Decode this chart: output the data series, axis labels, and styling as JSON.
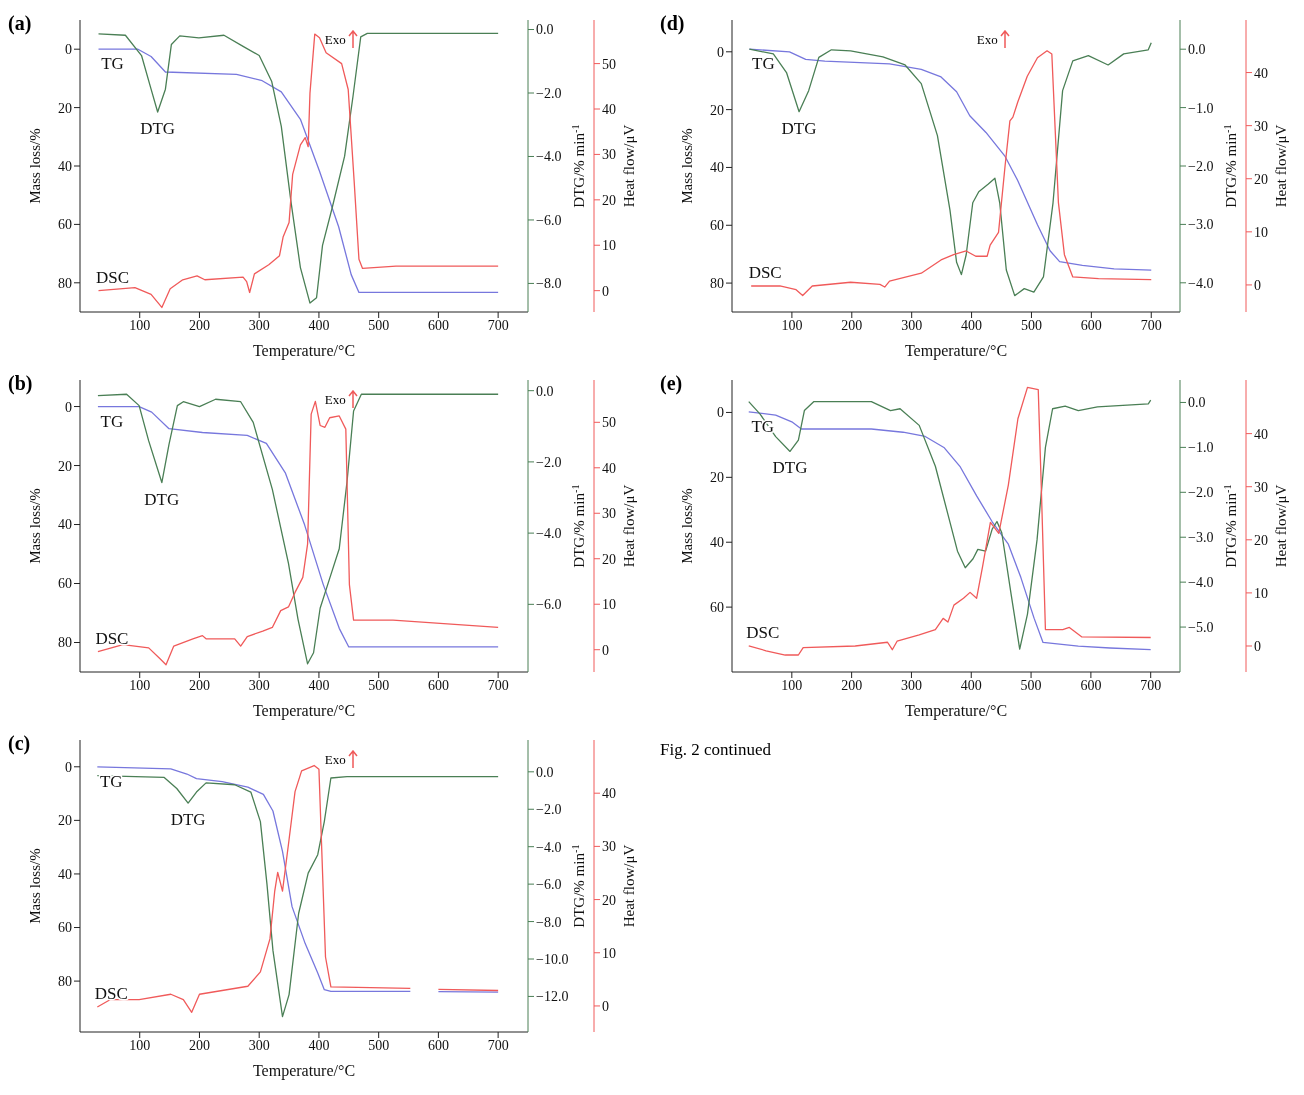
{
  "chart_data": [
    {
      "type": "line",
      "title": "(a)",
      "xlabel": "Temperature/°C",
      "ylabel": "Mass loss/%",
      "y2label": "DTG/% min$^{-1}$",
      "y3label": "Heat flow/μV",
      "xlim": [
        0,
        750
      ],
      "xticks": [
        100,
        200,
        300,
        400,
        500,
        600,
        700
      ],
      "ylim": [
        90,
        -10
      ],
      "yticks": [
        0,
        20,
        40,
        60,
        80
      ],
      "y2lim": [
        -8.9,
        0.3
      ],
      "y2ticks": [
        {
          "value": 0,
          "label": "0.0"
        },
        {
          "value": -2,
          "label": "−2.0"
        },
        {
          "value": -4,
          "label": "−4.0"
        },
        {
          "value": -6,
          "label": "−6.0"
        },
        {
          "value": -8,
          "label": "−8.0"
        }
      ],
      "y3lim": [
        -4.7,
        59.6
      ],
      "y3ticks": [
        0,
        10,
        20,
        30,
        40,
        50
      ],
      "annotations": [
        "Exo"
      ],
      "series": [
        {
          "name": "TG",
          "color": "#7777dd",
          "axis": "y",
          "x": [
            31,
            97,
            119,
            143,
            262,
            305,
            337,
            369,
            401,
            433,
            454,
            467,
            700
          ],
          "values": [
            0,
            0,
            2.5,
            7.8,
            8.6,
            10.8,
            14.6,
            24,
            41.8,
            60.8,
            77.2,
            83.3,
            83.3
          ]
        },
        {
          "name": "DTG",
          "color": "#4a7f55",
          "axis": "y2",
          "x": [
            31,
            76,
            103,
            119,
            130,
            143,
            153,
            167,
            199,
            241,
            273,
            300,
            321,
            337,
            353,
            369,
            385,
            396,
            406,
            422,
            443,
            457,
            470,
            481,
            700
          ],
          "values": [
            -0.14,
            -0.18,
            -0.82,
            -1.88,
            -2.6,
            -1.88,
            -0.47,
            -0.2,
            -0.26,
            -0.18,
            -0.53,
            -0.82,
            -1.64,
            -3.05,
            -5.4,
            -7.5,
            -8.62,
            -8.45,
            -6.8,
            -5.63,
            -3.99,
            -2.11,
            -0.23,
            -0.12,
            -0.12
          ]
        },
        {
          "name": "DSC",
          "color": "#f05a5a",
          "axis": "y3",
          "x": [
            31,
            92,
            119,
            137,
            151,
            172,
            196,
            209,
            273,
            279,
            284,
            292,
            316,
            334,
            340,
            350,
            356,
            369,
            377,
            382,
            385,
            393,
            401,
            412,
            438,
            449,
            459,
            467,
            473,
            529,
            700
          ],
          "values": [
            0,
            0.65,
            -0.8,
            -3.7,
            0.4,
            2.4,
            3.25,
            2.4,
            3,
            2,
            -0.4,
            3.7,
            5.7,
            7.7,
            11.8,
            15,
            25.6,
            32.1,
            33.7,
            31.7,
            43.5,
            56.5,
            55.7,
            52.4,
            50,
            44.3,
            24,
            6.9,
            4.9,
            5.4,
            5.4
          ]
        }
      ]
    },
    {
      "type": "line",
      "title": "(b)",
      "xlabel": "Temperature/°C",
      "ylabel": "Mass loss/%",
      "y2label": "DTG/% min$^{-1}$",
      "y3label": "Heat flow/μV",
      "xlim": [
        0,
        750
      ],
      "xticks": [
        100,
        200,
        300,
        400,
        500,
        600,
        700
      ],
      "ylim": [
        90,
        -9
      ],
      "yticks": [
        0,
        20,
        40,
        60,
        80
      ],
      "y2lim": [
        -7.9,
        0.3
      ],
      "y2ticks": [
        {
          "value": 0,
          "label": "0.0"
        },
        {
          "value": -2,
          "label": "−2.0"
        },
        {
          "value": -4,
          "label": "−4.0"
        },
        {
          "value": -6,
          "label": "−6.0"
        }
      ],
      "y3lim": [
        -4.9,
        59.3
      ],
      "y3ticks": [
        0,
        10,
        20,
        30,
        40,
        50
      ],
      "annotations": [
        "Exo"
      ],
      "series": [
        {
          "name": "TG",
          "color": "#7777dd",
          "axis": "y",
          "x": [
            30,
            99,
            120,
            149,
            205,
            280,
            312,
            344,
            376,
            407,
            434,
            450,
            700
          ],
          "values": [
            0,
            0,
            1.9,
            7.5,
            8.8,
            9.8,
            12.5,
            22.6,
            40.1,
            60.2,
            75.2,
            81.5,
            81.5
          ]
        },
        {
          "name": "DTG",
          "color": "#4a7f55",
          "axis": "y2",
          "x": [
            30,
            78,
            99,
            115,
            137,
            149,
            163,
            173,
            200,
            227,
            269,
            290,
            322,
            349,
            365,
            381,
            391,
            402,
            418,
            434,
            447,
            458,
            471,
            700
          ],
          "values": [
            -0.14,
            -0.1,
            -0.42,
            -1.41,
            -2.58,
            -1.51,
            -0.42,
            -0.31,
            -0.45,
            -0.24,
            -0.31,
            -0.89,
            -2.77,
            -4.85,
            -6.42,
            -7.67,
            -7.36,
            -6.11,
            -5.27,
            -4.44,
            -2.56,
            -0.57,
            -0.1,
            -0.1
          ]
        },
        {
          "name": "DSC",
          "color": "#f05a5a",
          "axis": "y3",
          "x": [
            30,
            72,
            115,
            134,
            144,
            157,
            189,
            205,
            211,
            259,
            269,
            280,
            306,
            322,
            336,
            349,
            360,
            373,
            381,
            387,
            394,
            402,
            410,
            418,
            434,
            445,
            451,
            458,
            524,
            700
          ],
          "values": [
            -0.4,
            1.1,
            0.4,
            -2,
            -3.3,
            0.8,
            2.4,
            3.1,
            2.4,
            2.4,
            0.8,
            2.9,
            4.1,
            4.9,
            8.6,
            9.4,
            12.6,
            15.9,
            23.2,
            51.8,
            54.6,
            49.3,
            48.9,
            51,
            51.4,
            48.5,
            14.3,
            6.5,
            6.5,
            4.9
          ]
        }
      ]
    },
    {
      "type": "line",
      "title": "(c)",
      "xlabel": "Temperature/°C",
      "ylabel": "Mass loss/%",
      "y2label": "DTG/% min$^{-1}$",
      "y3label": "Heat flow/μV",
      "xlim": [
        0,
        750
      ],
      "xticks": [
        100,
        200,
        300,
        400,
        500,
        600,
        700
      ],
      "ylim": [
        99,
        -10
      ],
      "yticks": [
        0,
        20,
        40,
        60,
        80
      ],
      "y2lim": [
        -13.9,
        1.7
      ],
      "y2ticks": [
        {
          "value": 0,
          "label": "0.0"
        },
        {
          "value": -2,
          "label": "−2.0"
        },
        {
          "value": -4,
          "label": "−4.0"
        },
        {
          "value": -6,
          "label": "−6.0"
        },
        {
          "value": -8,
          "label": "−8.0"
        },
        {
          "value": -10,
          "label": "−10.0"
        },
        {
          "value": -12,
          "label": "−12.0"
        }
      ],
      "y3lim": [
        -4.9,
        50
      ],
      "y3ticks": [
        0,
        10,
        20,
        30,
        40
      ],
      "annotations": [
        "Exo"
      ],
      "series": [
        {
          "name": "TG",
          "color": "#7777dd",
          "axis": "y",
          "x": [
            29,
            152,
            179,
            195,
            238,
            281,
            307,
            323,
            339,
            355,
            377,
            398,
            409,
            420,
            553,
            576,
            600,
            700
          ],
          "values": [
            0,
            0.8,
            2.7,
            4.4,
            5.5,
            7.6,
            10.3,
            16.5,
            31.6,
            52.2,
            66,
            77,
            83.2,
            83.8,
            83.8,
            null,
            83.9,
            84.1
          ]
        },
        {
          "name": "DTG",
          "color": "#4a7f55",
          "axis": "y2",
          "x": [
            29,
            141,
            162,
            181,
            195,
            211,
            259,
            286,
            302,
            313,
            323,
            339,
            350,
            366,
            382,
            398,
            409,
            420,
            447,
            700
          ],
          "values": [
            -0.2,
            -0.3,
            -0.89,
            -1.67,
            -1.08,
            -0.59,
            -0.69,
            -1.08,
            -2.66,
            -6,
            -9.54,
            -13.08,
            -11.9,
            -7.57,
            -5.41,
            -4.43,
            -2.66,
            -0.33,
            -0.26,
            -0.26
          ]
        },
        {
          "name": "DSC",
          "color": "#f05a5a",
          "axis": "y3",
          "x": [
            29,
            51,
            99,
            152,
            173,
            187,
            200,
            238,
            281,
            302,
            318,
            326,
            331,
            339,
            350,
            360,
            371,
            392,
            400,
            411,
            420,
            553,
            576,
            600,
            700
          ],
          "values": [
            -0.2,
            1.2,
            1.2,
            2.2,
            1.2,
            -1.2,
            2.2,
            2.9,
            3.7,
            6.4,
            12.6,
            21.6,
            25.1,
            21.6,
            31.3,
            40.3,
            44.2,
            45.2,
            44.5,
            9.2,
            3.6,
            3.3,
            null,
            3.1,
            2.9
          ]
        }
      ]
    },
    {
      "type": "line",
      "title": "(d)",
      "xlabel": "Temperature/°C",
      "ylabel": "Mass loss/%",
      "y2label": "DTG/% min$^{-1}$",
      "y3label": "Heat flow/μV",
      "xlim": [
        0,
        748
      ],
      "xticks": [
        100,
        200,
        300,
        400,
        500,
        600,
        700
      ],
      "ylim": [
        90,
        -11
      ],
      "yticks": [
        0,
        20,
        40,
        60,
        80
      ],
      "y2lim": [
        -4.5,
        0.5
      ],
      "y2ticks": [
        {
          "value": 0,
          "label": "0.0"
        },
        {
          "value": -1,
          "label": "−1.0"
        },
        {
          "value": -2,
          "label": "−2.0"
        },
        {
          "value": -3,
          "label": "−3.0"
        },
        {
          "value": -4,
          "label": "−4.0"
        }
      ],
      "y3lim": [
        -5.1,
        49.9
      ],
      "y3ticks": [
        0,
        10,
        20,
        30,
        40
      ],
      "annotations": [
        "Exo"
      ],
      "series": [
        {
          "name": "TG",
          "color": "#7777dd",
          "axis": "y",
          "x": [
            29,
            96,
            123,
            155,
            263,
            316,
            349,
            375,
            397,
            424,
            456,
            477,
            510,
            531,
            547,
            585,
            638,
            700
          ],
          "values": [
            -0.9,
            0,
            2.6,
            3.2,
            4.2,
            6.1,
            8.7,
            13.8,
            22.1,
            27.9,
            36.2,
            44.5,
            59.8,
            68.8,
            72.6,
            73.9,
            75.1,
            75.5
          ]
        },
        {
          "name": "DTG",
          "color": "#4a7f55",
          "axis": "y2",
          "x": [
            29,
            69,
            91,
            112,
            128,
            145,
            166,
            198,
            252,
            289,
            316,
            343,
            364,
            375,
            383,
            391,
            402,
            412,
            428,
            439,
            447,
            458,
            472,
            488,
            504,
            520,
            536,
            552,
            569,
            595,
            628,
            654,
            695,
            700
          ],
          "values": [
            0,
            -0.08,
            -0.4,
            -1.07,
            -0.71,
            -0.14,
            -0.01,
            -0.03,
            -0.13,
            -0.27,
            -0.59,
            -1.48,
            -2.76,
            -3.65,
            -3.86,
            -3.52,
            -2.63,
            -2.44,
            -2.31,
            -2.21,
            -2.63,
            -3.78,
            -4.22,
            -4.1,
            -4.16,
            -3.9,
            -2.63,
            -0.71,
            -0.2,
            -0.11,
            -0.27,
            -0.08,
            -0.01,
            0.11
          ]
        },
        {
          "name": "DSC",
          "color": "#f05a5a",
          "axis": "y3",
          "x": [
            32,
            80,
            107,
            118,
            134,
            198,
            247,
            255,
            263,
            316,
            349,
            370,
            391,
            407,
            426,
            431,
            445,
            456,
            464,
            469,
            477,
            493,
            510,
            526,
            534,
            545,
            555,
            569,
            612,
            700
          ],
          "values": [
            -0.2,
            -0.2,
            -0.9,
            -2,
            -0.2,
            0.5,
            0.1,
            -0.4,
            0.7,
            2.2,
            4.7,
            5.7,
            6.4,
            5.4,
            5.4,
            7.5,
            9.9,
            22.5,
            30.9,
            31.6,
            34.4,
            39.3,
            42.8,
            44.1,
            43.5,
            15.5,
            5.7,
            1.5,
            1.2,
            1
          ]
        }
      ]
    },
    {
      "type": "line",
      "title": "(e)",
      "xlabel": "Temperature/°C",
      "ylabel": "Mass loss/%",
      "y2label": "DTG/% min$^{-1}$",
      "y3label": "Heat flow/μV",
      "xlim": [
        0,
        749
      ],
      "xticks": [
        100,
        200,
        300,
        400,
        500,
        600,
        700
      ],
      "ylim": [
        80,
        -10
      ],
      "yticks": [
        0,
        20,
        40,
        60
      ],
      "y2lim": [
        -6,
        0.5
      ],
      "y2ticks": [
        {
          "value": 0,
          "label": "0.0"
        },
        {
          "value": -1,
          "label": "−1.0"
        },
        {
          "value": -2,
          "label": "−2.0"
        },
        {
          "value": -3,
          "label": "−3.0"
        },
        {
          "value": -4,
          "label": "−4.0"
        },
        {
          "value": -5,
          "label": "−5.0"
        }
      ],
      "y3lim": [
        -4.9,
        50.1
      ],
      "y3ticks": [
        0,
        10,
        20,
        30,
        40
      ],
      "annotations": [
        "Fig. 2 continued"
      ],
      "series": [
        {
          "name": "TG",
          "color": "#7777dd",
          "axis": "y",
          "x": [
            28,
            73,
            100,
            116,
            153,
            233,
            286,
            323,
            355,
            381,
            409,
            435,
            462,
            483,
            505,
            520,
            579,
            632,
            700
          ],
          "values": [
            -0.2,
            0.8,
            2.9,
            5.1,
            5.1,
            5.1,
            6.1,
            7.4,
            10.9,
            16.6,
            25.7,
            33.7,
            40.6,
            50.9,
            63.4,
            70.9,
            72,
            72.6,
            73.1
          ]
        },
        {
          "name": "DTG",
          "color": "#4a7f55",
          "axis": "y2",
          "x": [
            28,
            47,
            73,
            97,
            111,
            121,
            137,
            233,
            265,
            281,
            313,
            340,
            361,
            377,
            390,
            403,
            411,
            424,
            435,
            443,
            451,
            467,
            481,
            494,
            510,
            524,
            536,
            557,
            579,
            611,
            696,
            700
          ],
          "values": [
            0.02,
            -0.26,
            -0.76,
            -1.09,
            -0.84,
            -0.18,
            0.02,
            0.02,
            -0.18,
            -0.14,
            -0.51,
            -1.42,
            -2.49,
            -3.31,
            -3.68,
            -3.48,
            -3.27,
            -3.31,
            -2.82,
            -2.65,
            -2.9,
            -4.3,
            -5.49,
            -4.71,
            -3.06,
            -1,
            -0.14,
            -0.08,
            -0.18,
            -0.1,
            -0.03,
            0.05
          ]
        },
        {
          "name": "DSC",
          "color": "#f05a5a",
          "axis": "y3",
          "x": [
            28,
            57,
            89,
            111,
            119,
            206,
            260,
            268,
            276,
            313,
            340,
            353,
            361,
            371,
            387,
            398,
            409,
            419,
            432,
            446,
            462,
            478,
            494,
            512,
            517,
            524,
            553,
            564,
            585,
            700
          ],
          "values": [
            0,
            -0.9,
            -1.7,
            -1.7,
            -0.3,
            0,
            0.7,
            -0.7,
            0.9,
            2.1,
            3.1,
            5.2,
            4.5,
            7.7,
            9,
            10.1,
            9,
            15,
            23.3,
            21.2,
            30.3,
            42.8,
            48.7,
            48.3,
            30.3,
            3.1,
            3.1,
            3.5,
            1.7,
            1.6
          ]
        }
      ]
    }
  ]
}
